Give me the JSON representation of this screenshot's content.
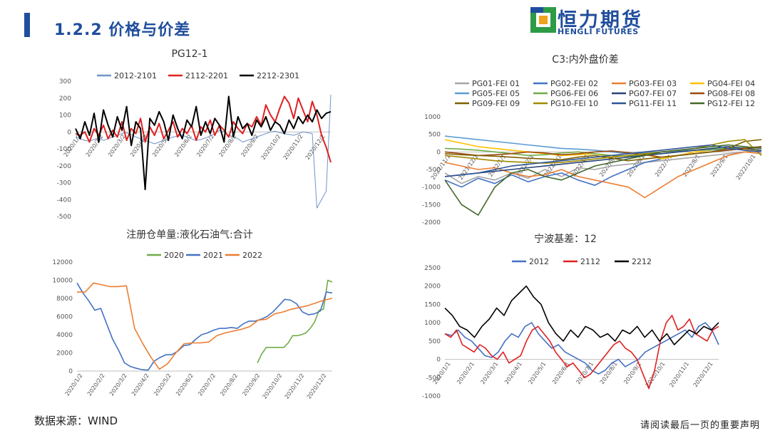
{
  "header": {
    "section_title": "1.2.2 价格与价差"
  },
  "logo": {
    "name": "恒力期货",
    "sub": "HENGLI FUTURES",
    "colors": {
      "blue": "#1f4e9c",
      "green": "#2e9b46",
      "orange": "#f0a21b"
    }
  },
  "footer": {
    "source": "数据来源：WIND",
    "disclaimer": "请阅读最后一页的重要声明"
  },
  "chart_data": [
    {
      "type": "line",
      "title": "PG12-1",
      "ylim": [
        -500,
        300
      ],
      "yticks": [
        300,
        200,
        100,
        0,
        -100,
        -200,
        -300,
        -400,
        -500
      ],
      "x_tick_labels": [
        "2020/1/2",
        "2020/2/2",
        "2020/3/2",
        "2020/4/2",
        "2020/5/2",
        "2020/6/2",
        "2020/7/2",
        "2020/8/2",
        "2020/9/2",
        "2020/10/2",
        "2020/11/2",
        "2020/12/2"
      ],
      "legend": "top",
      "series": [
        {
          "name": "2012-2101",
          "color": "#6f95c9",
          "width": 1,
          "values": [
            -30,
            -40,
            -50,
            -55,
            -45,
            -35,
            -50,
            -40,
            -30,
            -20,
            -10,
            -5,
            -15,
            -30,
            -40,
            -50,
            -60,
            -70,
            -60,
            -50,
            -40,
            -30,
            -25,
            -20,
            -30,
            -40,
            -50,
            -45,
            -35,
            -25,
            -10,
            10,
            0,
            -20,
            -30,
            -40,
            -60,
            -50,
            -40,
            -30,
            -20,
            -10,
            0,
            5,
            -5,
            -10,
            -15,
            -20,
            -10,
            0,
            -5,
            -10,
            -450,
            -400,
            -350,
            220
          ]
        },
        {
          "name": "2112-2201",
          "color": "#e02020",
          "width": 2,
          "values": [
            -10,
            -20,
            0,
            -60,
            20,
            -20,
            40,
            -40,
            10,
            -30,
            60,
            -50,
            20,
            -10,
            80,
            -60,
            30,
            -20,
            50,
            -40,
            10,
            60,
            -30,
            20,
            -10,
            40,
            -50,
            30,
            0,
            70,
            -20,
            40,
            10,
            -30,
            60,
            20,
            -10,
            50,
            30,
            90,
            40,
            160,
            100,
            60,
            140,
            210,
            170,
            80,
            200,
            130,
            60,
            180,
            100,
            -20,
            -90,
            -180
          ]
        },
        {
          "name": "2212-2301",
          "color": "#000000",
          "width": 2,
          "values": [
            20,
            -40,
            60,
            -20,
            110,
            -60,
            130,
            40,
            -30,
            90,
            10,
            150,
            -80,
            60,
            20,
            -340,
            80,
            40,
            120,
            60,
            -50,
            100,
            20,
            -40,
            70,
            30,
            150,
            -20,
            60,
            -10,
            80,
            40,
            -60,
            210,
            -30,
            90,
            20,
            50,
            -20,
            70,
            30,
            90,
            10,
            60,
            40,
            -10,
            70,
            20,
            90,
            50,
            100,
            60,
            130,
            80,
            110,
            120
          ]
        }
      ]
    },
    {
      "type": "line",
      "title": "C3:内外盘价差",
      "ylim": [
        -2000,
        1000
      ],
      "yticks": [
        1000,
        500,
        0,
        -500,
        -1000,
        -1500,
        -2000
      ],
      "x_tick_labels": [
        "2021/11/1",
        "2021/12/1",
        "2022/1/1",
        "2022/2/1",
        "2022/3/1",
        "2022/4/1",
        "2022/5/1",
        "2022/6/1",
        "2022/7/1",
        "2022/8/1",
        "2022/9/1",
        "2022/10/1"
      ],
      "legend": "top",
      "series": [
        {
          "name": "PG01-FEI 01",
          "color": "#a5a5a5",
          "values": [
            -600,
            -900,
            -700,
            -800,
            -600,
            -750,
            -500,
            -700,
            -450,
            -500,
            -400,
            -350,
            -300,
            -250,
            -200,
            -150,
            -100,
            -50,
            0,
            50
          ]
        },
        {
          "name": "PG02-FEI 02",
          "color": "#4472c4",
          "values": [
            -800,
            -1000,
            -750,
            -900,
            -650,
            -850,
            -700,
            -600,
            -800,
            -950,
            -700,
            -500,
            -300,
            -200,
            -100,
            -50,
            0,
            50,
            100,
            150
          ]
        },
        {
          "name": "PG03-FEI 03",
          "color": "#ed7d31",
          "values": [
            -300,
            -400,
            -500,
            -450,
            -600,
            -700,
            -650,
            -500,
            -700,
            -800,
            -900,
            -1000,
            -1300,
            -1000,
            -700,
            -500,
            -300,
            -100,
            0,
            -50
          ]
        },
        {
          "name": "PG04-FEI 04",
          "color": "#ffc000",
          "values": [
            350,
            250,
            150,
            100,
            50,
            0,
            -50,
            -100,
            -80,
            -50,
            -150,
            -100,
            -50,
            -200,
            -100,
            0,
            50,
            100,
            80,
            50
          ]
        },
        {
          "name": "PG05-FEI 05",
          "color": "#5b9bd5",
          "values": [
            450,
            400,
            350,
            300,
            250,
            200,
            150,
            100,
            80,
            50,
            0,
            -50,
            -30,
            0,
            30,
            50,
            60,
            80,
            100,
            120
          ]
        },
        {
          "name": "PG06-FEI 06",
          "color": "#70ad47",
          "values": [
            100,
            80,
            50,
            0,
            -50,
            -100,
            -80,
            -30,
            0,
            -50,
            -100,
            -120,
            -80,
            -50,
            0,
            50,
            80,
            100,
            120,
            150
          ]
        },
        {
          "name": "PG07-FEI 07",
          "color": "#264478",
          "values": [
            -700,
            -650,
            -600,
            -550,
            -500,
            -450,
            -400,
            -350,
            -300,
            -250,
            -200,
            -150,
            -100,
            -50,
            0,
            50,
            100,
            150,
            100,
            50
          ]
        },
        {
          "name": "PG08-FEI 08",
          "color": "#9e480e",
          "values": [
            0,
            -50,
            -100,
            -80,
            -50,
            0,
            -30,
            -80,
            -50,
            0,
            30,
            -20,
            -80,
            -150,
            -100,
            -50,
            0,
            50,
            100,
            150
          ]
        },
        {
          "name": "PG09-FEI 09",
          "color": "#7f6000",
          "values": [
            -50,
            -80,
            -100,
            -120,
            -150,
            -180,
            -200,
            -220,
            -150,
            -100,
            -180,
            -250,
            -200,
            -150,
            -100,
            -50,
            0,
            100,
            300,
            350
          ]
        },
        {
          "name": "PG10-FEI 10",
          "color": "#a08a00",
          "values": [
            -100,
            -150,
            -200,
            -250,
            -280,
            -300,
            -320,
            -300,
            -250,
            -200,
            -150,
            -100,
            -50,
            0,
            50,
            100,
            200,
            300,
            350,
            -100
          ]
        },
        {
          "name": "PG11-FEI 11",
          "color": "#2f5597",
          "values": [
            -700,
            -650,
            -600,
            -500,
            -400,
            -350,
            -300,
            -250,
            -200,
            -150,
            -100,
            -50,
            0,
            50,
            100,
            150,
            200,
            100,
            50,
            0
          ]
        },
        {
          "name": "PG12-FEI 12",
          "color": "#43682b",
          "values": [
            -800,
            -1500,
            -1800,
            -1000,
            -600,
            -500,
            -700,
            -800,
            -600,
            -400,
            -300,
            -200,
            -100,
            0,
            50,
            100,
            150,
            200,
            150,
            100
          ]
        }
      ]
    },
    {
      "type": "line",
      "title": "注册仓单量:液化石油气:合计",
      "ylim": [
        0,
        12000
      ],
      "yticks": [
        12000,
        10000,
        8000,
        6000,
        4000,
        2000,
        0
      ],
      "x_tick_labels": [
        "2020/1/2",
        "2020/2/2",
        "2020/3/2",
        "2020/4/2",
        "2020/5/2",
        "2020/6/2",
        "2020/7/2",
        "2020/8/2",
        "2020/9/2",
        "2020/10/2",
        "2020/11/2",
        "2020/12/2"
      ],
      "legend": "top",
      "series": [
        {
          "name": "2020",
          "color": "#70ad47",
          "values": [
            null,
            null,
            null,
            null,
            null,
            null,
            null,
            null,
            null,
            null,
            null,
            null,
            null,
            null,
            null,
            null,
            null,
            null,
            null,
            null,
            null,
            null,
            null,
            null,
            null,
            null,
            null,
            null,
            null,
            null,
            null,
            null,
            null,
            null,
            null,
            null,
            null,
            null,
            null,
            null,
            null,
            900,
            1900,
            2600,
            2600,
            2600,
            2600,
            2600,
            3100,
            3900,
            3900,
            4000,
            4200,
            4700,
            5400,
            6700,
            6800,
            10000,
            9800
          ]
        },
        {
          "name": "2021",
          "color": "#4472c4",
          "values": [
            9700,
            8600,
            7700,
            6700,
            6900,
            5200,
            3500,
            2300,
            900,
            500,
            300,
            150,
            100,
            1100,
            1500,
            1800,
            1800,
            2200,
            2800,
            2900,
            3500,
            4000,
            4200,
            4500,
            4700,
            4700,
            4800,
            4700,
            5200,
            5500,
            5500,
            5700,
            6000,
            6500,
            7200,
            7900,
            7800,
            7400,
            6500,
            6200,
            6300,
            6600,
            8700,
            8600
          ]
        },
        {
          "name": "2022",
          "color": "#ed7d31",
          "values": [
            8700,
            8700,
            9700,
            9500,
            9300,
            9300,
            9400,
            4700,
            3000,
            1500,
            200,
            800,
            2000,
            3000,
            3100,
            3100,
            3200,
            3900,
            4200,
            4400,
            4600,
            4900,
            5600,
            5700,
            6300,
            6500,
            6800,
            7000,
            7200,
            7500,
            7800,
            8000
          ]
        }
      ]
    },
    {
      "type": "line",
      "title": "宁波基差：12",
      "ylim": [
        -1000,
        2500
      ],
      "yticks": [
        2500,
        2000,
        1500,
        1000,
        500,
        0,
        -500,
        -1000
      ],
      "x_tick_labels": [
        "2020/1/1",
        "2020/2/1",
        "2020/3/1",
        "2020/4/1",
        "2020/5/1",
        "2020/6/1",
        "2020/7/1",
        "2020/8/1",
        "2020/9/1",
        "2020/10/1",
        "2020/11/1",
        "2020/12/1"
      ],
      "legend": "top",
      "series": [
        {
          "name": "2012",
          "color": "#4472c4",
          "values": [
            700,
            650,
            800,
            600,
            500,
            300,
            100,
            50,
            200,
            500,
            700,
            600,
            900,
            1000,
            700,
            500,
            300,
            400,
            200,
            100,
            0,
            -100,
            -300,
            -400,
            -300,
            -100,
            0,
            -200,
            -100,
            0,
            200,
            300,
            400,
            500,
            600,
            700,
            800,
            600,
            900,
            1000,
            800,
            400
          ]
        },
        {
          "name": "2112",
          "color": "#e02020",
          "values": [
            700,
            600,
            800,
            400,
            300,
            200,
            400,
            300,
            100,
            0,
            200,
            -100,
            0,
            100,
            500,
            800,
            900,
            700,
            500,
            200,
            0,
            -200,
            -100,
            -300,
            -500,
            -400,
            -200,
            0,
            200,
            400,
            500,
            300,
            200,
            0,
            -400,
            -800,
            -300,
            500,
            1000,
            1200,
            800,
            900,
            1100,
            700,
            600,
            500,
            800,
            900
          ]
        },
        {
          "name": "2212",
          "color": "#000000",
          "values": [
            1400,
            1200,
            900,
            800,
            600,
            900,
            1100,
            1400,
            1200,
            1600,
            1800,
            2000,
            1700,
            1500,
            1000,
            700,
            500,
            800,
            600,
            900,
            800,
            600,
            700,
            500,
            800,
            700,
            900,
            600,
            800,
            500,
            700,
            400,
            600,
            800,
            700,
            900,
            800,
            1000
          ]
        }
      ]
    }
  ]
}
